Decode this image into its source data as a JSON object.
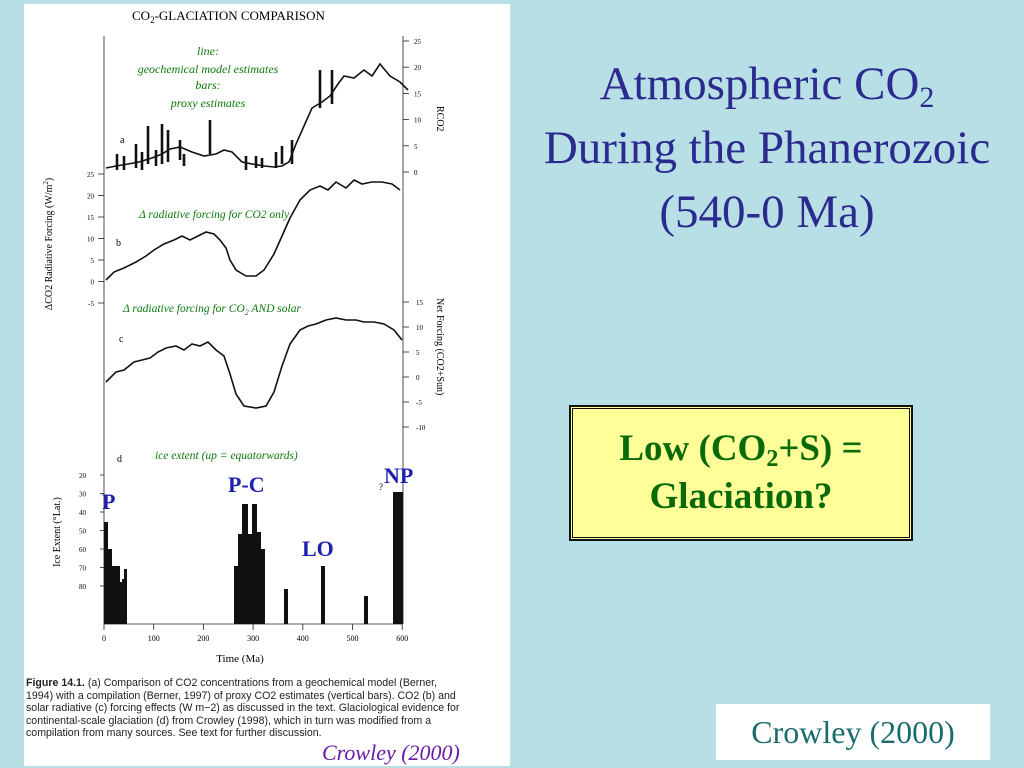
{
  "slide": {
    "title_prefix": "Atmospheric CO",
    "title_sub": "2",
    "title_rest": "During the Phanerozoic (540-0 Ma)",
    "callout_prefix": "Low (CO",
    "callout_sub": "2",
    "callout_suffix": "+S) =",
    "callout_line2": "Glaciation?",
    "credit": "Crowley (2000)",
    "background_color": "#b9dfe6",
    "title_color": "#2b2b8f",
    "callout_bg": "#ffff99",
    "callout_text_color": "#0a6a0a"
  },
  "figure": {
    "title_prefix": "CO",
    "title_sub": "2",
    "title_rest": "-GLACIATION COMPARISON",
    "panel_a_label": "a",
    "panel_b_label": "b",
    "panel_c_label": "c",
    "panel_d_label": "d",
    "legend_line1": "line:",
    "legend_line2": "geochemical model estimates",
    "legend_line3": "bars:",
    "legend_line4": "proxy estimates",
    "note_b": "Δ radiative forcing for CO2 only",
    "note_c_prefix": "Δ radiative forcing for CO",
    "note_c_sub": "2",
    "note_c_suffix": " AND solar",
    "note_d": "ice extent (up = equatorwards)",
    "right_axis_top_label": "RCO2",
    "right_axis_top_ticks": [
      "25",
      "20",
      "15",
      "10",
      "5",
      "0"
    ],
    "left_axis_mid_label_prefix": "ΔCO2 Radiative Forcing (W/m",
    "left_axis_mid_label_sup": "2",
    "left_axis_mid_label_suffix": ")",
    "left_axis_mid_ticks": [
      "25",
      "20",
      "15",
      "10",
      "5",
      "0",
      "-5"
    ],
    "right_axis_mid_label": "Net Forcing (CO2+Sun)",
    "right_axis_mid_ticks": [
      "15",
      "10",
      "5",
      "0",
      "-5",
      "-10"
    ],
    "ice_axis_label": "Ice Extent (°Lat.)",
    "ice_axis_ticks": [
      "20",
      "30",
      "40",
      "50",
      "60",
      "70",
      "80"
    ],
    "x_axis_label": "Time (Ma)",
    "x_axis_ticks": [
      "0",
      "100",
      "200",
      "300",
      "400",
      "500",
      "600"
    ],
    "glaciation_labels": [
      "P",
      "P-C",
      "LO",
      "NP"
    ],
    "question_mark": "?",
    "glaciation_label_color": "#2020b0",
    "note_color": "#0a7a0a",
    "caption_head": "Figure 14.1.",
    "caption_body": " (a) Comparison of CO2 concentrations from a geochemical model (Berner, 1994) with a compilation (Berner, 1997) of proxy CO2 estimates (vertical bars). CO2 (b) and solar radiative (c) forcing effects (W m−2) as discussed in the text. Glaciological evidence for continental-scale glaciation (d) from Crowley (1998), which in turn was modified from a compilation from many sources. See text for further discussion.",
    "handwritten": "Crowley (2000)"
  }
}
